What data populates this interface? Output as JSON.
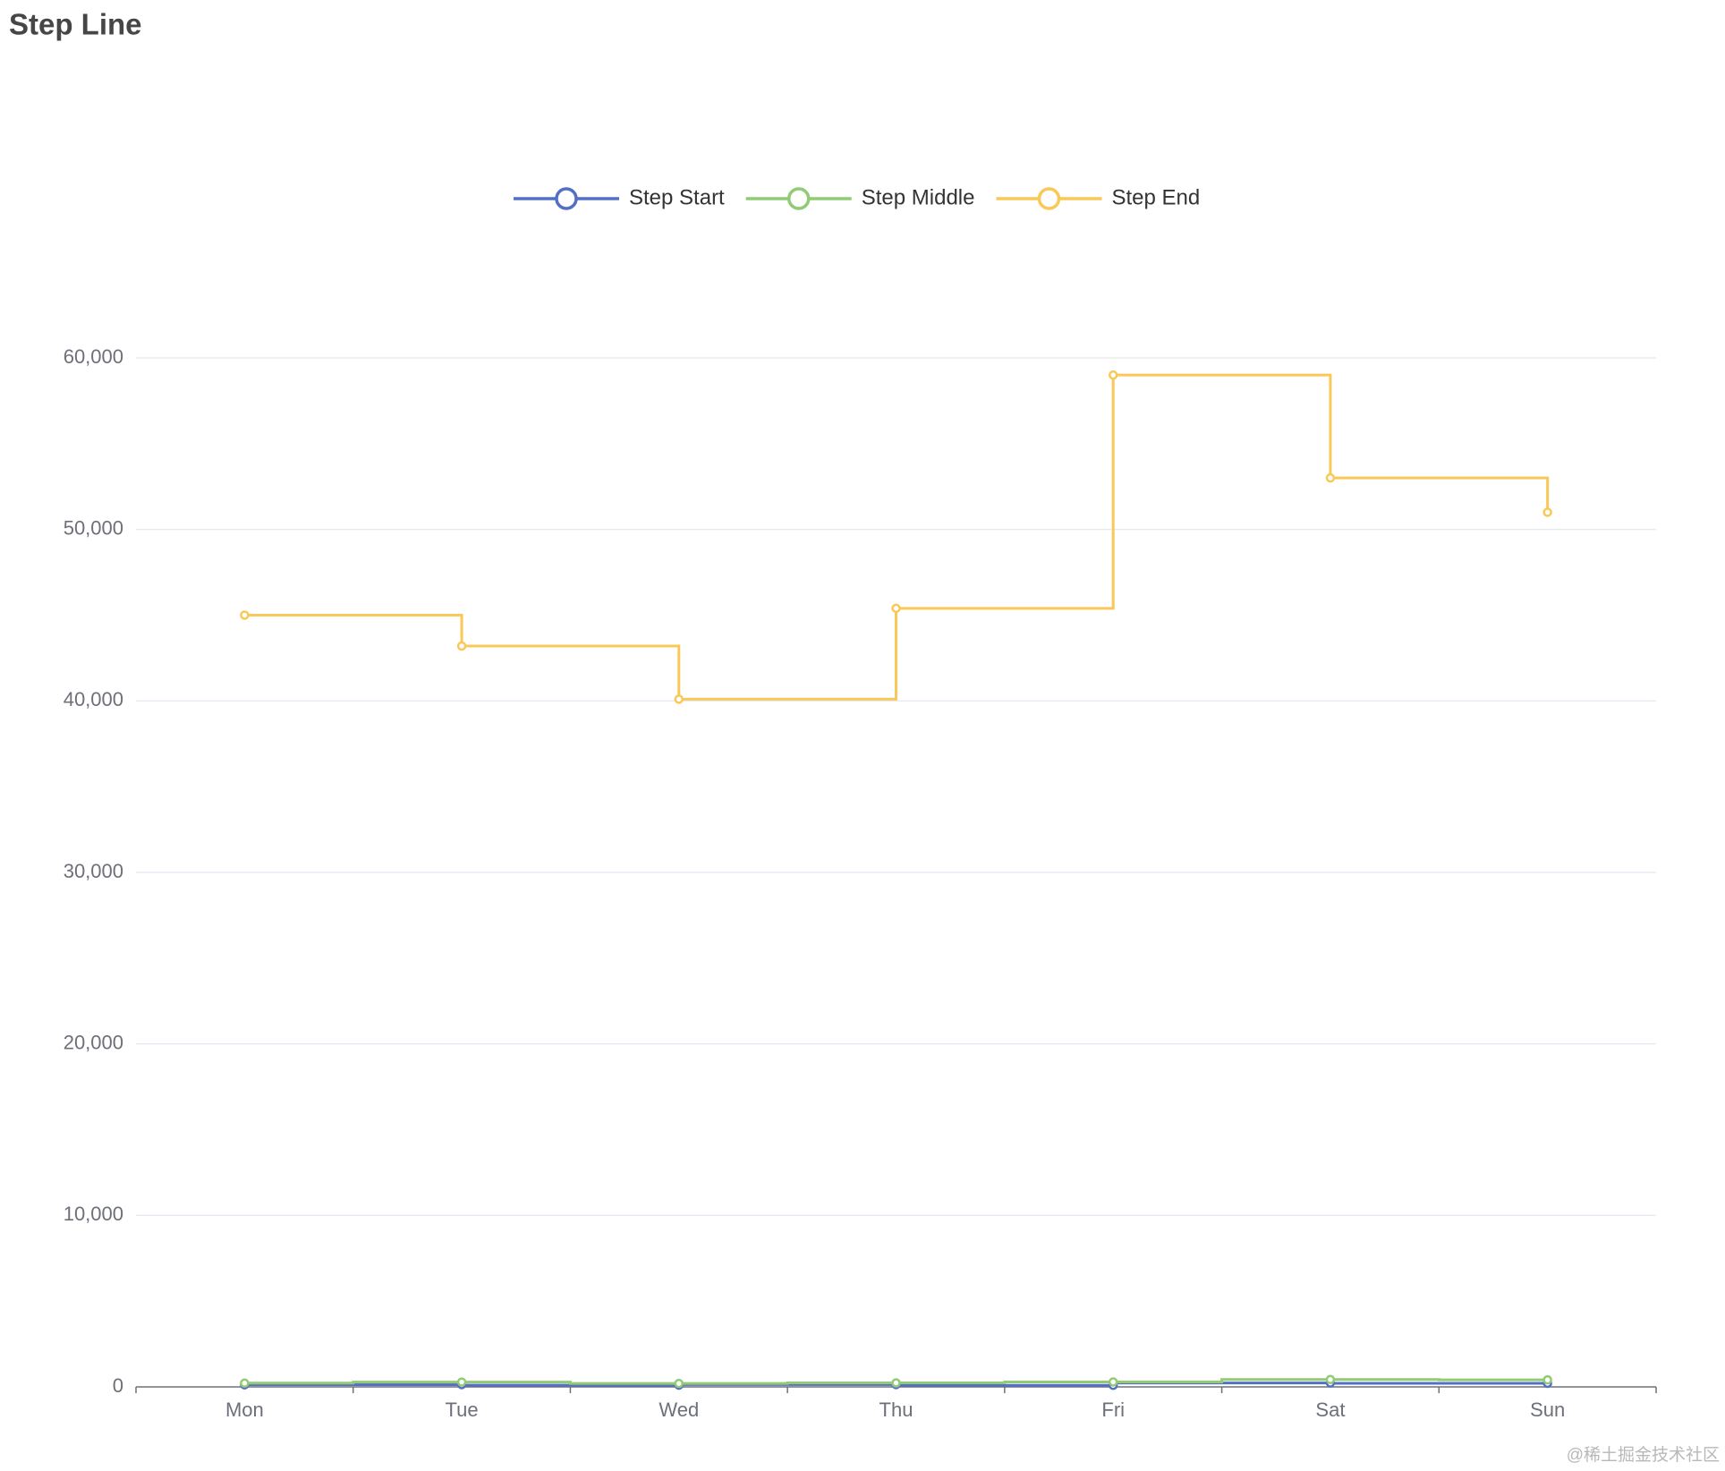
{
  "chart_data": {
    "type": "line",
    "title": "Step Line",
    "categories": [
      "Mon",
      "Tue",
      "Wed",
      "Thu",
      "Fri",
      "Sat",
      "Sun"
    ],
    "series": [
      {
        "name": "Step Start",
        "color": "#5470c6",
        "step": "start",
        "values": [
          120,
          132,
          101,
          134,
          90,
          230,
          210
        ]
      },
      {
        "name": "Step Middle",
        "color": "#91cc75",
        "step": "middle",
        "values": [
          220,
          282,
          201,
          234,
          290,
          430,
          410
        ]
      },
      {
        "name": "Step End",
        "color": "#fac858",
        "step": "end",
        "values": [
          45000,
          43200,
          40100,
          45400,
          59000,
          53000,
          51000
        ]
      }
    ],
    "ylim": [
      0,
      60000
    ],
    "yticks": [
      0,
      {
        "value": 10000,
        "label": "10,000"
      },
      {
        "value": 20000,
        "label": "20,000"
      },
      {
        "value": 30000,
        "label": "30,000"
      },
      {
        "value": 40000,
        "label": "40,000"
      },
      {
        "value": 50000,
        "label": "50,000"
      },
      {
        "value": 60000,
        "label": "60,000"
      }
    ],
    "grid": true,
    "legend": "top",
    "watermark": "@稀土掘金技术社区"
  }
}
